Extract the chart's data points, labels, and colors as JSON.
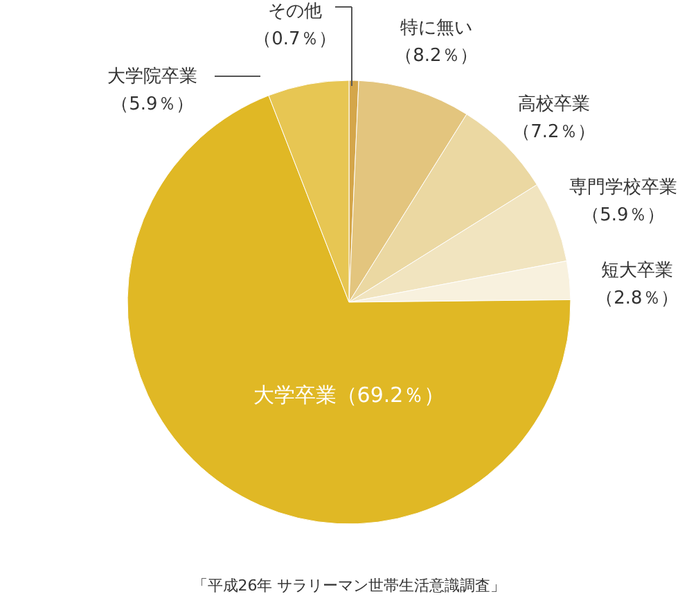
{
  "chart_data": {
    "type": "pie",
    "categories": [
      "その他",
      "特に無い",
      "高校卒業",
      "専門学校卒業",
      "短大卒業",
      "大学卒業",
      "大学院卒業"
    ],
    "values": [
      0.7,
      8.2,
      7.2,
      5.9,
      2.8,
      69.2,
      5.9
    ],
    "colors": [
      "#d4a64a",
      "#e3c57e",
      "#ebd8a2",
      "#f1e4bf",
      "#f8f1de",
      "#e0b825",
      "#e7c653"
    ],
    "value_labels": [
      "（0.7％）",
      "（8.2％）",
      "（7.2％）",
      "（5.9％）",
      "（2.8％）",
      "（69.2％）",
      "（5.9％）"
    ],
    "annotations": [
      "「平成26年 サラリーマン世帯生活意識調査」"
    ]
  }
}
